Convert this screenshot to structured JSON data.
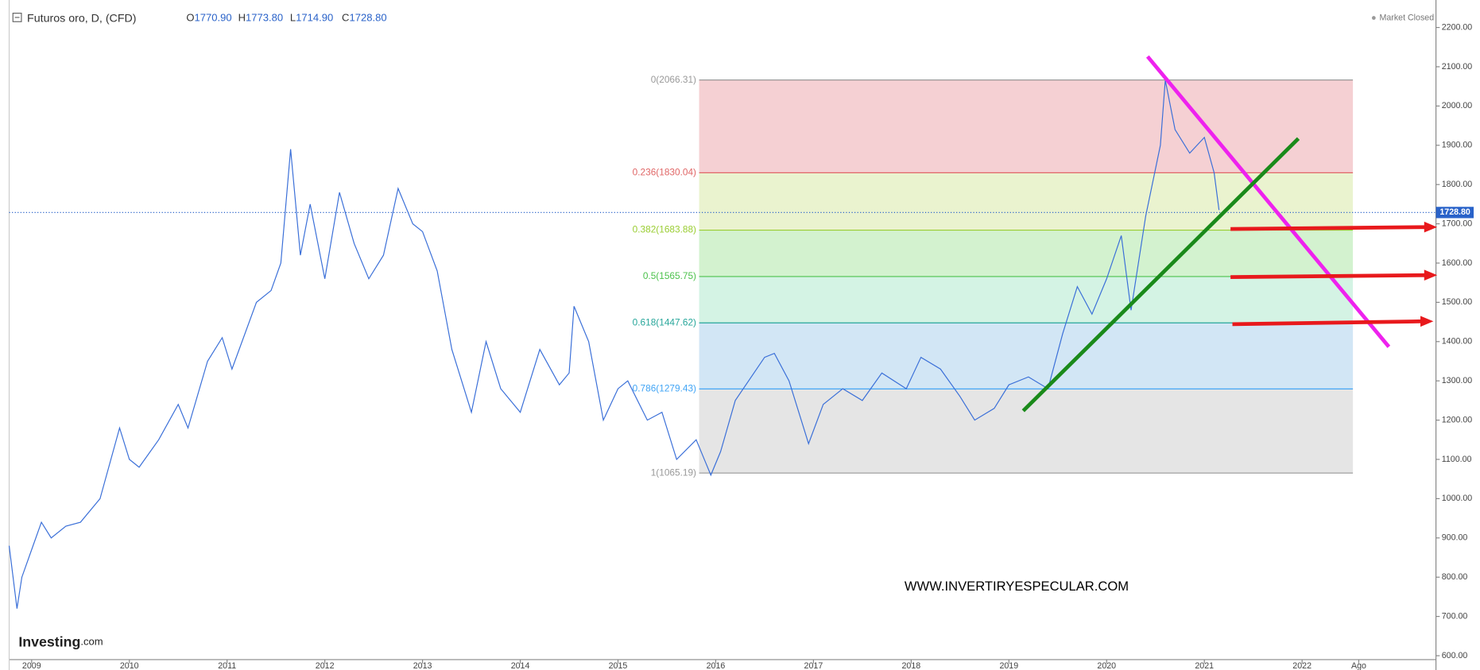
{
  "chart_data": {
    "type": "line",
    "title": "Futuros oro, D, (CFD)",
    "ohlc": [
      {
        "key": "O",
        "value": "1770.90"
      },
      {
        "key": "H",
        "value": "1773.80"
      },
      {
        "key": "L",
        "value": "1714.90"
      },
      {
        "key": "C",
        "value": "1728.80"
      }
    ],
    "status": "Market Closed",
    "watermark": "WWW.INVERTIRYESPECULAR.COM",
    "logo": "Investing",
    "logo_suffix": ".com",
    "last_price": {
      "value": 1728.8,
      "label": "1728.80"
    },
    "series": [
      {
        "name": "Futuros oro",
        "color": "#3a6fd8",
        "x": [
          2008.77,
          2008.85,
          2008.9,
          2009.0,
          2009.1,
          2009.2,
          2009.35,
          2009.5,
          2009.7,
          2009.9,
          2010.0,
          2010.1,
          2010.3,
          2010.5,
          2010.6,
          2010.8,
          2010.95,
          2011.05,
          2011.3,
          2011.45,
          2011.55,
          2011.65,
          2011.75,
          2011.85,
          2012.0,
          2012.15,
          2012.3,
          2012.45,
          2012.6,
          2012.75,
          2012.9,
          2013.0,
          2013.15,
          2013.3,
          2013.5,
          2013.65,
          2013.8,
          2014.0,
          2014.2,
          2014.4,
          2014.5,
          2014.55,
          2014.7,
          2014.85,
          2015.0,
          2015.1,
          2015.3,
          2015.45,
          2015.6,
          2015.8,
          2015.95,
          2016.05,
          2016.2,
          2016.5,
          2016.6,
          2016.75,
          2016.95,
          2017.1,
          2017.3,
          2017.5,
          2017.7,
          2017.95,
          2018.1,
          2018.3,
          2018.5,
          2018.65,
          2018.85,
          2019.0,
          2019.2,
          2019.4,
          2019.55,
          2019.7,
          2019.85,
          2020.0,
          2020.15,
          2020.25,
          2020.4,
          2020.55,
          2020.6,
          2020.7,
          2020.85,
          2021.0,
          2021.1,
          2021.15
        ],
        "values": [
          880,
          720,
          800,
          870,
          940,
          900,
          930,
          940,
          1000,
          1180,
          1100,
          1080,
          1150,
          1240,
          1180,
          1350,
          1410,
          1330,
          1500,
          1530,
          1600,
          1890,
          1620,
          1750,
          1560,
          1780,
          1650,
          1560,
          1620,
          1790,
          1700,
          1680,
          1580,
          1380,
          1220,
          1400,
          1280,
          1220,
          1380,
          1290,
          1320,
          1490,
          1400,
          1200,
          1280,
          1300,
          1200,
          1220,
          1100,
          1150,
          1060,
          1120,
          1250,
          1360,
          1370,
          1300,
          1140,
          1240,
          1280,
          1250,
          1320,
          1280,
          1360,
          1330,
          1260,
          1200,
          1230,
          1290,
          1310,
          1280,
          1420,
          1540,
          1470,
          1560,
          1670,
          1480,
          1720,
          1900,
          2066,
          1940,
          1880,
          1920,
          1830,
          1735
        ]
      }
    ],
    "fib_x": [
      2015.83,
      2022.52
    ],
    "fib_levels": [
      {
        "label": "0(2066.31)",
        "value": 2066.31,
        "color": "#999999",
        "fill": "#f5d0d3"
      },
      {
        "label": "0.236(1830.04)",
        "value": 1830.04,
        "color": "#e06666",
        "fill": "#eaf3cf"
      },
      {
        "label": "0.382(1683.88)",
        "value": 1683.88,
        "color": "#9acd32",
        "fill": "#d3f2cf"
      },
      {
        "label": "0.5(1565.75)",
        "value": 1565.75,
        "color": "#4cc24c",
        "fill": "#d4f3e4"
      },
      {
        "label": "0.618(1447.62)",
        "value": 1447.62,
        "color": "#26a69a",
        "fill": "#d2e6f5"
      },
      {
        "label": "0.786(1279.43)",
        "value": 1279.43,
        "color": "#42a5f5",
        "fill": "#e5e5e5"
      },
      {
        "label": "1(1065.19)",
        "value": 1065.19,
        "color": "#999999"
      }
    ],
    "xlim": [
      2008.77,
      2023.37
    ],
    "ylim": [
      590,
      2270
    ],
    "xticks": [
      2009,
      2010,
      2011,
      2012,
      2013,
      2014,
      2015,
      2016,
      2017,
      2018,
      2019,
      2020,
      2021,
      2022,
      {
        "value": 2022.58,
        "label": "Ago"
      }
    ],
    "yticks": [
      {
        "value": 600,
        "label": "600.00"
      },
      {
        "value": 700,
        "label": "700.00"
      },
      {
        "value": 800,
        "label": "800.00"
      },
      {
        "value": 900,
        "label": "900.00"
      },
      {
        "value": 1000,
        "label": "1000.00"
      },
      {
        "value": 1100,
        "label": "1100.00"
      },
      {
        "value": 1200,
        "label": "1200.00"
      },
      {
        "value": 1300,
        "label": "1300.00"
      },
      {
        "value": 1400,
        "label": "1400.00"
      },
      {
        "value": 1500,
        "label": "1500.00"
      },
      {
        "value": 1600,
        "label": "1600.00"
      },
      {
        "value": 1700,
        "label": "1700.00"
      },
      {
        "value": 1800,
        "label": "1800.00"
      },
      {
        "value": 1900,
        "label": "1900.00"
      },
      {
        "value": 2000,
        "label": "2000.00"
      },
      {
        "value": 2100,
        "label": "2100.00"
      },
      {
        "value": 2200,
        "label": "2200.00"
      }
    ]
  }
}
